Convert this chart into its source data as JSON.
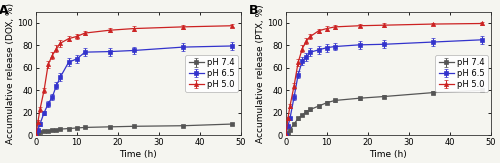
{
  "panel_A": {
    "label": "A",
    "ylabel": "Accumulative release (DOX, %)",
    "xlabel": "Time (h)",
    "ylim": [
      0,
      110
    ],
    "xlim": [
      0,
      50
    ],
    "yticks": [
      0,
      20,
      40,
      60,
      80,
      100
    ],
    "xticks": [
      0,
      10,
      20,
      30,
      40,
      50
    ],
    "series": [
      {
        "label": "pH 7.4",
        "color": "#555555",
        "marker": "s",
        "x": [
          0,
          0.5,
          1,
          2,
          3,
          4,
          5,
          6,
          8,
          10,
          12,
          18,
          24,
          36,
          48
        ],
        "y": [
          0,
          1.5,
          2.5,
          3.5,
          4.0,
          4.5,
          5.0,
          5.5,
          6.0,
          6.5,
          7.0,
          7.5,
          8.0,
          8.5,
          10.0
        ],
        "yerr": [
          0,
          0.3,
          0.3,
          0.4,
          0.4,
          0.4,
          0.4,
          0.5,
          0.5,
          0.5,
          0.5,
          0.6,
          0.6,
          0.6,
          0.7
        ]
      },
      {
        "label": "pH 6.5",
        "color": "#3333cc",
        "marker": "s",
        "x": [
          0,
          0.5,
          1,
          2,
          3,
          4,
          5,
          6,
          8,
          10,
          12,
          18,
          24,
          36,
          48
        ],
        "y": [
          0,
          5.0,
          10.0,
          20.0,
          28.0,
          34.0,
          44.0,
          52.0,
          65.0,
          68.0,
          74.0,
          74.5,
          75.5,
          78.5,
          79.5
        ],
        "yerr": [
          0,
          1.0,
          1.5,
          2.0,
          2.5,
          2.5,
          3.0,
          3.5,
          3.5,
          3.5,
          3.5,
          3.5,
          3.5,
          3.5,
          3.5
        ]
      },
      {
        "label": "pH 5.0",
        "color": "#cc2222",
        "marker": "^",
        "x": [
          0,
          0.5,
          1,
          2,
          3,
          4,
          5,
          6,
          8,
          10,
          12,
          18,
          24,
          36,
          48
        ],
        "y": [
          0,
          12.0,
          23.0,
          40.0,
          63.0,
          71.0,
          77.0,
          82.0,
          86.0,
          88.0,
          91.0,
          93.5,
          95.0,
          96.5,
          97.5
        ],
        "yerr": [
          0,
          1.5,
          2.0,
          2.5,
          3.0,
          3.0,
          3.0,
          3.0,
          2.5,
          2.5,
          2.0,
          2.0,
          2.0,
          1.5,
          1.5
        ]
      }
    ]
  },
  "panel_B": {
    "label": "B",
    "ylabel": "Accumulative release (PTX, %)",
    "xlabel": "Time (h)",
    "ylim": [
      0,
      110
    ],
    "xlim": [
      0,
      50
    ],
    "yticks": [
      0,
      20,
      40,
      60,
      80,
      100
    ],
    "xticks": [
      0,
      10,
      20,
      30,
      40,
      50
    ],
    "series": [
      {
        "label": "pH 7.4",
        "color": "#555555",
        "marker": "s",
        "x": [
          0,
          0.5,
          1,
          2,
          3,
          4,
          5,
          6,
          8,
          10,
          12,
          18,
          24,
          36,
          48
        ],
        "y": [
          0,
          2.0,
          5.0,
          10.0,
          15.0,
          18.0,
          21.0,
          23.0,
          26.0,
          29.0,
          31.0,
          33.0,
          34.5,
          38.0,
          40.0
        ],
        "yerr": [
          0,
          0.5,
          0.8,
          1.0,
          1.2,
          1.2,
          1.2,
          1.3,
          1.3,
          1.5,
          1.5,
          1.5,
          1.5,
          1.5,
          1.5
        ]
      },
      {
        "label": "pH 6.5",
        "color": "#3333cc",
        "marker": "s",
        "x": [
          0,
          0.5,
          1,
          2,
          3,
          4,
          5,
          6,
          8,
          10,
          12,
          18,
          24,
          36,
          48
        ],
        "y": [
          0,
          8.0,
          15.0,
          34.0,
          54.0,
          66.0,
          70.0,
          74.0,
          76.0,
          78.0,
          79.0,
          80.5,
          81.0,
          83.0,
          85.0
        ],
        "yerr": [
          0,
          1.0,
          1.5,
          2.5,
          3.0,
          3.5,
          3.5,
          3.5,
          3.5,
          3.5,
          3.5,
          3.5,
          3.5,
          3.5,
          3.5
        ]
      },
      {
        "label": "pH 5.0",
        "color": "#cc2222",
        "marker": "^",
        "x": [
          0,
          0.5,
          1,
          2,
          3,
          4,
          5,
          6,
          8,
          10,
          12,
          18,
          24,
          36,
          48
        ],
        "y": [
          0,
          15.0,
          26.0,
          44.0,
          65.0,
          77.0,
          84.0,
          88.0,
          93.0,
          95.0,
          96.5,
          97.5,
          98.0,
          99.0,
          99.5
        ],
        "yerr": [
          0,
          1.5,
          2.0,
          2.5,
          3.0,
          3.0,
          2.5,
          2.5,
          2.0,
          2.0,
          2.0,
          1.5,
          1.5,
          1.0,
          1.0
        ]
      }
    ]
  },
  "figure_bg": "#f5f5f0",
  "axes_bg": "#f5f5f0",
  "font_size": 6.0,
  "label_fontsize": 6.5,
  "tick_fontsize": 6.0,
  "linewidth": 0.9,
  "markersize": 3.0,
  "elinewidth": 0.7,
  "capsize": 1.5,
  "legend_fontsize": 6.0
}
